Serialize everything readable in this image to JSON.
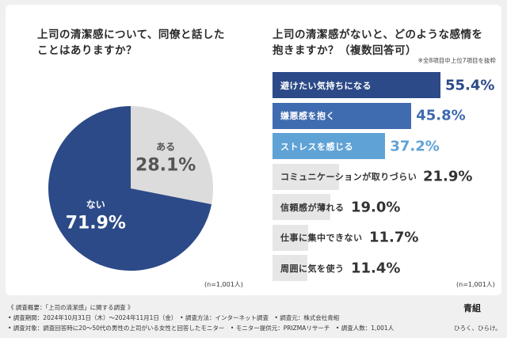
{
  "q1": {
    "title": "上司の清潔感について、同僚と話した\nことはありますか？",
    "n_label": "(n=1,001人)"
  },
  "q2": {
    "title": "上司の清潔感がないと、どのような感情を\n抱きますか？（複数回答可）",
    "note": "※全8項目中上位7項目を抜粋",
    "n_label": "(n=1,001人)"
  },
  "chart_data": [
    {
      "type": "pie",
      "categories": [
        "ある",
        "ない"
      ],
      "values": [
        28.1,
        71.9
      ],
      "value_labels": [
        "28.1%",
        "71.9%"
      ],
      "colors": [
        "#dcdcdc",
        "#2c4a87"
      ]
    },
    {
      "type": "bar",
      "orientation": "horizontal",
      "categories": [
        "避けたい気持ちになる",
        "嫌悪感を抱く",
        "ストレスを感じる",
        "コミュニケーションが取りづらい",
        "信頼感が薄れる",
        "仕事に集中できない",
        "周囲に気を使う"
      ],
      "values": [
        55.4,
        45.8,
        37.2,
        21.9,
        19.0,
        11.7,
        11.4
      ],
      "value_labels": [
        "55.4%",
        "45.8%",
        "37.2%",
        "21.9%",
        "19.0%",
        "11.7%",
        "11.4%"
      ],
      "colors": [
        "#2c4a87",
        "#3f6bb0",
        "#5fa2d6",
        "#e6e6e6",
        "#e6e6e6",
        "#e6e6e6",
        "#e6e6e6"
      ]
    }
  ],
  "footer": {
    "line1": "《 調査概要：「上司の清潔感」に関する調査 》",
    "line2": "• 調査期間：2024年10月31日（木）～2024年11月1日（金）　• 調査方法：インターネット調査　• 調査元：株式会社青組",
    "line3": "• 調査対象：調査回答時に20～50代の男性の上司がいる女性と回答したモニター　• モニター提供元：PRIZMAリサーチ　• 調査人数：1,001人",
    "logo": "青組",
    "tagline": "ひろく、ひらけ。"
  }
}
